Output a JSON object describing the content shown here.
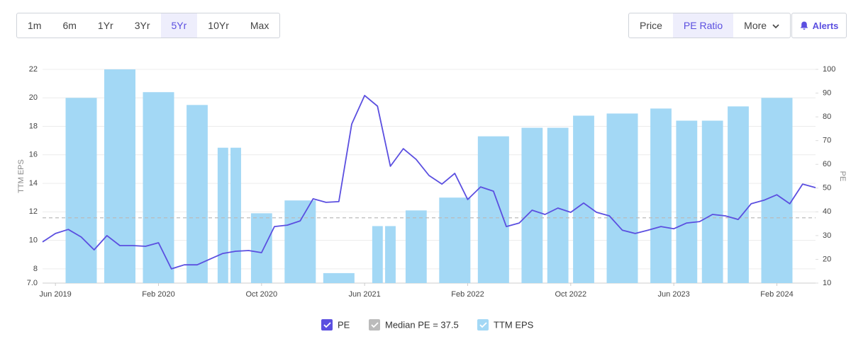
{
  "toolbar": {
    "ranges": [
      "1m",
      "6m",
      "1Yr",
      "3Yr",
      "5Yr",
      "10Yr",
      "Max"
    ],
    "selected_range": 4,
    "views": [
      "Price",
      "PE Ratio",
      "More"
    ],
    "selected_view": 1,
    "alerts": "Alerts"
  },
  "chart_data": {
    "type": "combo",
    "y_label": "TTM EPS",
    "y2_label": "PE",
    "xlim": [
      "2019-05",
      "2024-05"
    ],
    "xticks": [
      {
        "value": "2019-06",
        "label": "Jun 2019"
      },
      {
        "value": "2020-02",
        "label": "Feb 2020"
      },
      {
        "value": "2020-10",
        "label": "Oct 2020"
      },
      {
        "value": "2021-06",
        "label": "Jun 2021"
      },
      {
        "value": "2022-02",
        "label": "Feb 2022"
      },
      {
        "value": "2022-10",
        "label": "Oct 2022"
      },
      {
        "value": "2023-06",
        "label": "Jun 2023"
      },
      {
        "value": "2024-02",
        "label": "Feb 2024"
      }
    ],
    "ylim": [
      7,
      22
    ],
    "yticks": [
      {
        "value": 7,
        "label": "7.0"
      },
      8,
      10,
      12,
      14,
      16,
      18,
      20,
      22
    ],
    "y2lim": [
      10,
      100
    ],
    "y2ticks": [
      10,
      20,
      30,
      40,
      50,
      60,
      70,
      80,
      90,
      100
    ],
    "grid": true,
    "series": [
      {
        "name": "PE",
        "type": "line",
        "axis": "y2",
        "color": "#5b4fe0",
        "x": [
          "2019-05",
          "2019-06",
          "2019-07",
          "2019-08",
          "2019-09",
          "2019-10",
          "2019-11",
          "2019-12",
          "2020-01",
          "2020-02",
          "2020-03",
          "2020-04",
          "2020-05",
          "2020-06",
          "2020-07",
          "2020-08",
          "2020-09",
          "2020-10",
          "2020-11",
          "2020-12",
          "2021-01",
          "2021-02",
          "2021-03",
          "2021-04",
          "2021-05",
          "2021-06",
          "2021-07",
          "2021-08",
          "2021-09",
          "2021-10",
          "2021-11",
          "2021-12",
          "2022-01",
          "2022-02",
          "2022-03",
          "2022-04",
          "2022-05",
          "2022-06",
          "2022-07",
          "2022-08",
          "2022-09",
          "2022-10",
          "2022-11",
          "2022-12",
          "2023-01",
          "2023-02",
          "2023-03",
          "2023-04",
          "2023-05",
          "2023-06",
          "2023-07",
          "2023-08",
          "2023-09",
          "2023-10",
          "2023-11",
          "2023-12",
          "2024-01",
          "2024-02",
          "2024-03",
          "2024-04",
          "2024-05"
        ],
        "values": [
          27.3,
          30.9,
          32.6,
          29.4,
          24,
          30,
          25.8,
          25.8,
          25.5,
          27,
          16,
          17.7,
          17.7,
          20.1,
          22.5,
          23.4,
          23.7,
          22.8,
          33.8,
          34.4,
          36.2,
          45.5,
          44,
          44.3,
          77,
          89,
          84.5,
          59.2,
          66.6,
          62.1,
          55.3,
          51.7,
          56.2,
          45.2,
          50.5,
          48.7,
          33.8,
          35.3,
          40.7,
          38.9,
          41.6,
          39.8,
          43.7,
          39.8,
          38.3,
          32.3,
          30.9,
          32.3,
          33.8,
          32.9,
          35.3,
          35.9,
          38.9,
          38.3,
          36.8,
          43.4,
          44.9,
          47.2,
          43.4,
          51.7,
          50.2
        ]
      },
      {
        "name": "TTM EPS",
        "type": "bar",
        "axis": "y",
        "color": "#a3d8f5",
        "x": [
          "2019-08",
          "2019-11",
          "2020-02",
          "2020-05",
          "2020-07",
          "2020-08",
          "2020-10",
          "2021-01",
          "2021-04",
          "2021-07",
          "2021-08",
          "2021-10",
          "2022-01",
          "2022-04",
          "2022-07",
          "2022-09",
          "2022-11",
          "2023-02",
          "2023-05",
          "2023-07",
          "2023-09",
          "2023-11",
          "2024-02"
        ],
        "values": [
          20,
          22,
          20.4,
          19.5,
          16.5,
          16.5,
          11.9,
          12.8,
          7.7,
          11,
          11,
          12.1,
          13,
          17.3,
          17.9,
          17.9,
          18.75,
          18.9,
          19.25,
          18.4,
          18.4,
          19.4,
          20
        ]
      }
    ],
    "reference_lines": [
      {
        "name": "Median PE = 37.5",
        "value": 37.5,
        "axis": "y2",
        "color": "#bbbbbb"
      }
    ]
  }
}
